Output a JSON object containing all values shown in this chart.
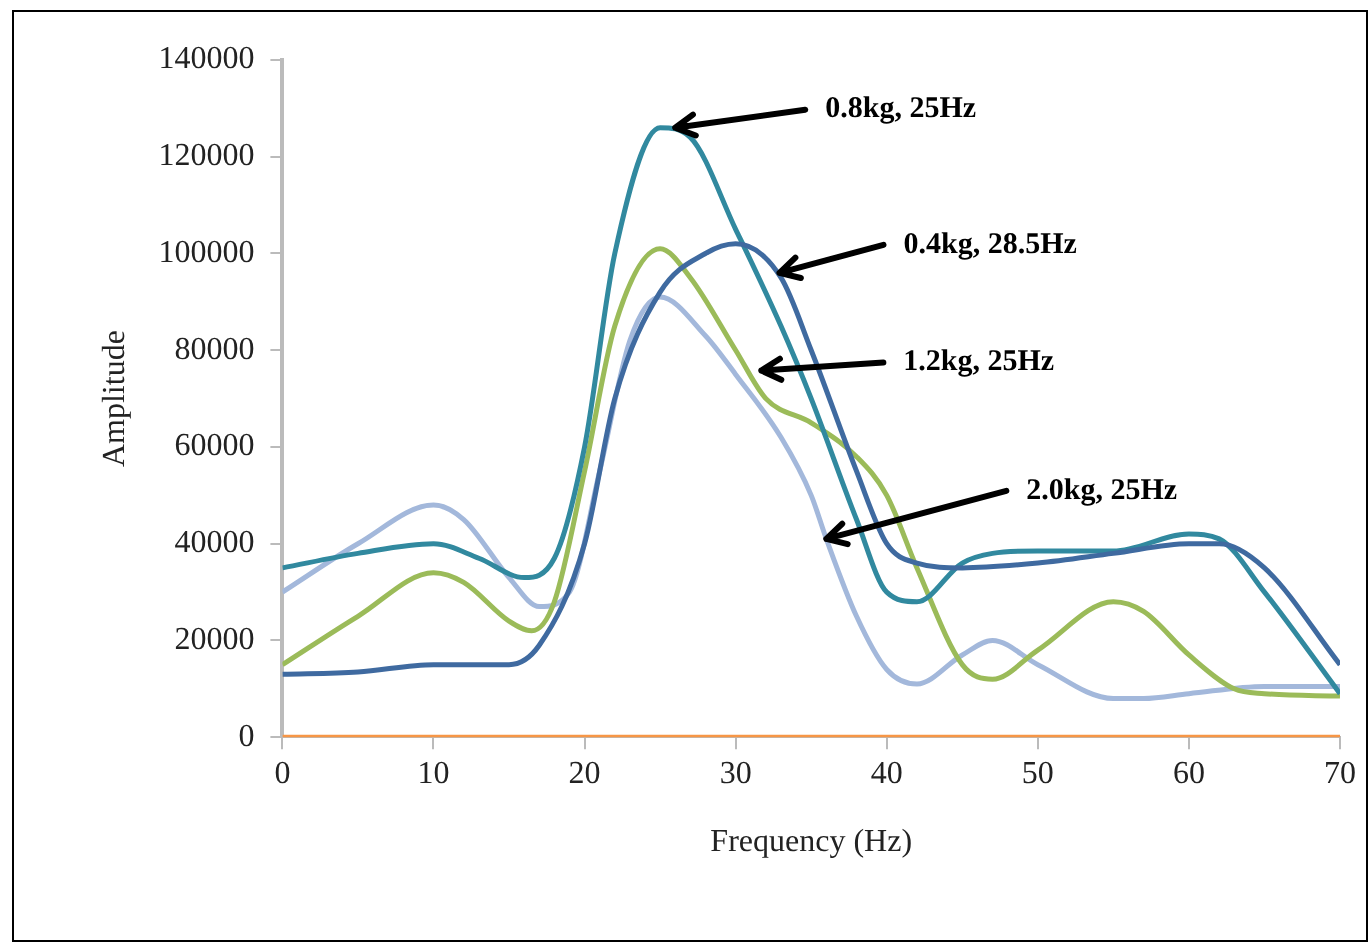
{
  "chart_data": {
    "type": "line",
    "xlabel": "Frequency (Hz)",
    "ylabel": "Amplitude",
    "xlim": [
      0,
      70
    ],
    "xticks": [
      0,
      10,
      20,
      30,
      40,
      50,
      60,
      70
    ],
    "ylim": [
      0,
      140000
    ],
    "yticks": [
      0,
      20000,
      40000,
      60000,
      80000,
      100000,
      120000,
      140000
    ],
    "grid": false,
    "legend": false,
    "marker": "none",
    "line_style": "solid",
    "series": [
      {
        "color": "#3f6aa0",
        "x": [
          0,
          5,
          10,
          15,
          17,
          20,
          22,
          25,
          28,
          30,
          33,
          35,
          38,
          40,
          42,
          45,
          50,
          55,
          60,
          62,
          65,
          70
        ],
        "values": [
          13000,
          13500,
          15000,
          15000,
          19000,
          40000,
          70000,
          92000,
          100000,
          102000,
          95000,
          80000,
          55000,
          40000,
          36000,
          35000,
          36000,
          38000,
          40000,
          40000,
          35000,
          15000
        ]
      },
      {
        "color": "#31899f",
        "x": [
          0,
          5,
          10,
          13,
          16,
          18,
          20,
          22,
          25,
          27,
          30,
          33,
          35,
          38,
          40,
          42,
          45,
          47,
          50,
          55,
          60,
          62,
          65,
          70
        ],
        "values": [
          35000,
          38000,
          40000,
          37000,
          33000,
          37000,
          60000,
          100000,
          126000,
          124000,
          105000,
          85000,
          70000,
          45000,
          30000,
          28000,
          36000,
          38000,
          38500,
          38500,
          42000,
          41000,
          30000,
          9000
        ]
      },
      {
        "color": "#9bbb59",
        "x": [
          0,
          5,
          10,
          12,
          15,
          16.5,
          18,
          20,
          22,
          25,
          27,
          30,
          32,
          35,
          38,
          40,
          42,
          45,
          47,
          50,
          55,
          57,
          60,
          63,
          65,
          70
        ],
        "values": [
          15000,
          25000,
          34000,
          32000,
          24000,
          22000,
          28000,
          55000,
          85000,
          101000,
          95000,
          80000,
          70000,
          65000,
          58000,
          50000,
          35000,
          15000,
          12000,
          18000,
          28000,
          26000,
          17000,
          10000,
          9000,
          8500
        ]
      },
      {
        "color": "#a3b8db",
        "x": [
          0,
          5,
          10,
          12,
          15,
          17,
          19,
          21,
          23,
          25,
          28,
          30,
          33,
          35,
          36,
          38,
          40,
          42,
          45,
          47,
          50,
          55,
          57,
          60,
          65,
          70
        ],
        "values": [
          30000,
          40000,
          48000,
          45000,
          33000,
          27000,
          30000,
          55000,
          82000,
          91000,
          83000,
          75000,
          62000,
          50000,
          41000,
          25000,
          14000,
          11000,
          17000,
          20000,
          15000,
          8000,
          8000,
          9000,
          10500,
          10500
        ]
      },
      {
        "color": "#f79646",
        "x": [
          0,
          70
        ],
        "values": [
          0,
          0
        ]
      }
    ],
    "annotations": [
      {
        "text": "0.8kg, 25Hz",
        "x": 26,
        "y": 126000
      },
      {
        "text": "0.4kg, 28.5Hz",
        "x": 32.9,
        "y": 96000
      },
      {
        "text": "1.2kg, 25Hz",
        "x": 31.7,
        "y": 75800
      },
      {
        "text": "2.0kg, 25Hz",
        "x": 36,
        "y": 41000
      }
    ]
  }
}
